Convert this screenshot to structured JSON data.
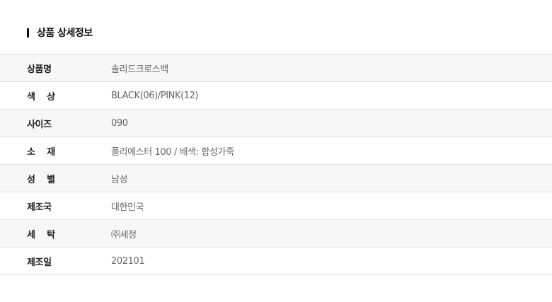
{
  "section_title": "상품 상세정보",
  "rows": [
    {
      "label": "상품명",
      "value": "솔리드크로스백"
    },
    {
      "label": "색    상",
      "value": "BLACK(06)/PINK(12)"
    },
    {
      "label": "사이즈",
      "value": "090"
    },
    {
      "label": "소    재",
      "value": "폴리에스터 100 / 배색: 합성가죽"
    },
    {
      "label": "성    별",
      "value": "남성"
    },
    {
      "label": "제조국",
      "value": "대한민국"
    },
    {
      "label": "세    탁",
      "value": "㈜세정"
    },
    {
      "label": "제조일",
      "value": "202101"
    }
  ]
}
